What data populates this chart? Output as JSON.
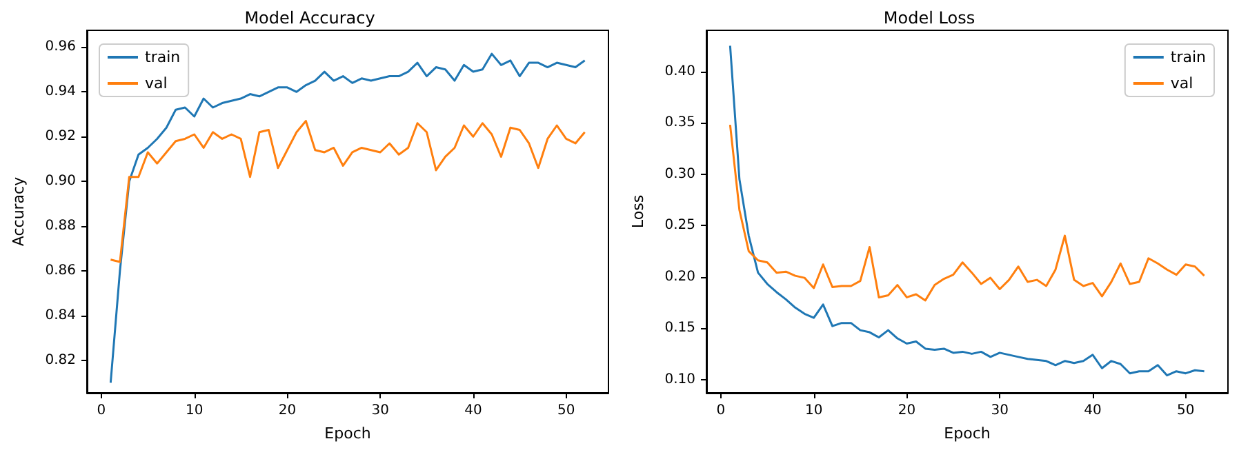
{
  "chart_data": [
    {
      "type": "line",
      "title": "Model Accuracy",
      "xlabel": "Epoch",
      "ylabel": "Accuracy",
      "legend": "top left",
      "grid": false,
      "marker": "none",
      "line_style": "solid",
      "x": [
        1,
        2,
        3,
        4,
        5,
        6,
        7,
        8,
        9,
        10,
        11,
        12,
        13,
        14,
        15,
        16,
        17,
        18,
        19,
        20,
        21,
        22,
        23,
        24,
        25,
        26,
        27,
        28,
        29,
        30,
        31,
        32,
        33,
        34,
        35,
        36,
        37,
        38,
        39,
        40,
        41,
        42,
        43,
        44,
        45,
        46,
        47,
        48,
        49,
        50,
        51,
        52
      ],
      "xlim": [
        -1.55,
        54.55
      ],
      "xticks": [
        0,
        10,
        20,
        30,
        40,
        50
      ],
      "ylim": [
        0.8055,
        0.9675
      ],
      "yticks": [
        {
          "value": 0.82,
          "label": "0.82"
        },
        {
          "value": 0.84,
          "label": "0.84"
        },
        {
          "value": 0.86,
          "label": "0.86"
        },
        {
          "value": 0.88,
          "label": "0.88"
        },
        {
          "value": 0.9,
          "label": "0.90"
        },
        {
          "value": 0.92,
          "label": "0.92"
        },
        {
          "value": 0.94,
          "label": "0.94"
        },
        {
          "value": 0.96,
          "label": "0.96"
        }
      ],
      "series": [
        {
          "name": "train",
          "color": "#1f77b4",
          "values": [
            0.81,
            0.86,
            0.9,
            0.912,
            0.915,
            0.919,
            0.924,
            0.932,
            0.933,
            0.929,
            0.937,
            0.933,
            0.935,
            0.936,
            0.937,
            0.939,
            0.938,
            0.94,
            0.942,
            0.942,
            0.94,
            0.943,
            0.945,
            0.949,
            0.945,
            0.947,
            0.944,
            0.946,
            0.945,
            0.946,
            0.947,
            0.947,
            0.949,
            0.953,
            0.947,
            0.951,
            0.95,
            0.945,
            0.952,
            0.949,
            0.95,
            0.957,
            0.952,
            0.954,
            0.947,
            0.953,
            0.953,
            0.951,
            0.953,
            0.952,
            0.951,
            0.954
          ]
        },
        {
          "name": "val",
          "color": "#ff7f0e",
          "values": [
            0.865,
            0.864,
            0.902,
            0.902,
            0.913,
            0.908,
            0.913,
            0.918,
            0.919,
            0.921,
            0.915,
            0.922,
            0.919,
            0.921,
            0.919,
            0.902,
            0.922,
            0.923,
            0.906,
            0.914,
            0.922,
            0.927,
            0.914,
            0.913,
            0.915,
            0.907,
            0.913,
            0.915,
            0.914,
            0.913,
            0.917,
            0.912,
            0.915,
            0.926,
            0.922,
            0.905,
            0.911,
            0.915,
            0.925,
            0.92,
            0.926,
            0.921,
            0.911,
            0.924,
            0.923,
            0.917,
            0.906,
            0.919,
            0.925,
            0.919,
            0.917,
            0.922
          ]
        }
      ]
    },
    {
      "type": "line",
      "title": "Model Loss",
      "xlabel": "Epoch",
      "ylabel": "Loss",
      "legend": "top right",
      "grid": false,
      "marker": "none",
      "line_style": "solid",
      "x": [
        1,
        2,
        3,
        4,
        5,
        6,
        7,
        8,
        9,
        10,
        11,
        12,
        13,
        14,
        15,
        16,
        17,
        18,
        19,
        20,
        21,
        22,
        23,
        24,
        25,
        26,
        27,
        28,
        29,
        30,
        31,
        32,
        33,
        34,
        35,
        36,
        37,
        38,
        39,
        40,
        41,
        42,
        43,
        44,
        45,
        46,
        47,
        48,
        49,
        50,
        51,
        52
      ],
      "xlim": [
        -1.55,
        54.55
      ],
      "xticks": [
        0,
        10,
        20,
        30,
        40,
        50
      ],
      "ylim": [
        0.087,
        0.44
      ],
      "yticks": [
        {
          "value": 0.1,
          "label": "0.10"
        },
        {
          "value": 0.15,
          "label": "0.15"
        },
        {
          "value": 0.2,
          "label": "0.20"
        },
        {
          "value": 0.25,
          "label": "0.25"
        },
        {
          "value": 0.3,
          "label": "0.30"
        },
        {
          "value": 0.35,
          "label": "0.35"
        },
        {
          "value": 0.4,
          "label": "0.40"
        }
      ],
      "series": [
        {
          "name": "train",
          "color": "#1f77b4",
          "values": [
            0.425,
            0.295,
            0.24,
            0.204,
            0.193,
            0.185,
            0.178,
            0.17,
            0.164,
            0.16,
            0.173,
            0.152,
            0.155,
            0.155,
            0.148,
            0.146,
            0.141,
            0.148,
            0.14,
            0.135,
            0.137,
            0.13,
            0.129,
            0.13,
            0.126,
            0.127,
            0.125,
            0.127,
            0.122,
            0.126,
            0.124,
            0.122,
            0.12,
            0.119,
            0.118,
            0.114,
            0.118,
            0.116,
            0.118,
            0.124,
            0.111,
            0.118,
            0.115,
            0.106,
            0.108,
            0.108,
            0.114,
            0.104,
            0.108,
            0.106,
            0.109,
            0.108
          ]
        },
        {
          "name": "val",
          "color": "#ff7f0e",
          "values": [
            0.348,
            0.265,
            0.225,
            0.216,
            0.214,
            0.204,
            0.205,
            0.201,
            0.199,
            0.189,
            0.212,
            0.19,
            0.191,
            0.191,
            0.196,
            0.229,
            0.18,
            0.182,
            0.192,
            0.18,
            0.183,
            0.177,
            0.192,
            0.198,
            0.202,
            0.214,
            0.204,
            0.193,
            0.199,
            0.188,
            0.197,
            0.21,
            0.195,
            0.197,
            0.191,
            0.207,
            0.24,
            0.197,
            0.191,
            0.194,
            0.181,
            0.195,
            0.213,
            0.193,
            0.195,
            0.218,
            0.213,
            0.207,
            0.202,
            0.212,
            0.21,
            0.201
          ]
        }
      ]
    }
  ]
}
